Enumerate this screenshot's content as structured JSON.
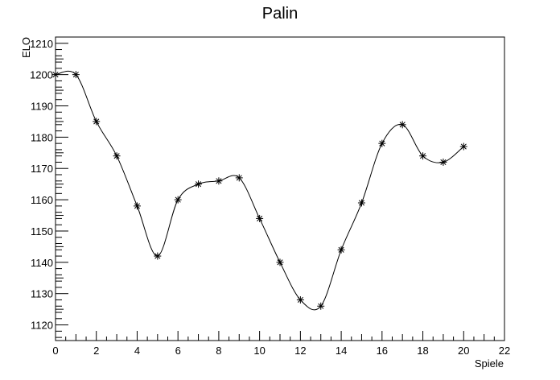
{
  "chart_data": {
    "type": "line",
    "title": "Palin",
    "xlabel": "Spiele",
    "ylabel": "ELO",
    "xlim": [
      0,
      22
    ],
    "ylim": [
      1115,
      1212
    ],
    "x_ticks": [
      0,
      2,
      4,
      6,
      8,
      10,
      12,
      14,
      16,
      18,
      20,
      22
    ],
    "y_ticks": [
      1120,
      1130,
      1140,
      1150,
      1160,
      1170,
      1180,
      1190,
      1200,
      1210
    ],
    "grid": false,
    "marker": "asterisk",
    "smooth": true,
    "series": [
      {
        "x": [
          0,
          1,
          2,
          3,
          4,
          5,
          6,
          7,
          8,
          9,
          10,
          11,
          12,
          13,
          14,
          15,
          16,
          17,
          18,
          19,
          20
        ],
        "values": [
          1200,
          1200,
          1185,
          1174,
          1158,
          1142,
          1160,
          1165,
          1166,
          1167,
          1154,
          1140,
          1128,
          1126,
          1144,
          1159,
          1178,
          1184,
          1174,
          1172,
          1177
        ]
      }
    ]
  }
}
